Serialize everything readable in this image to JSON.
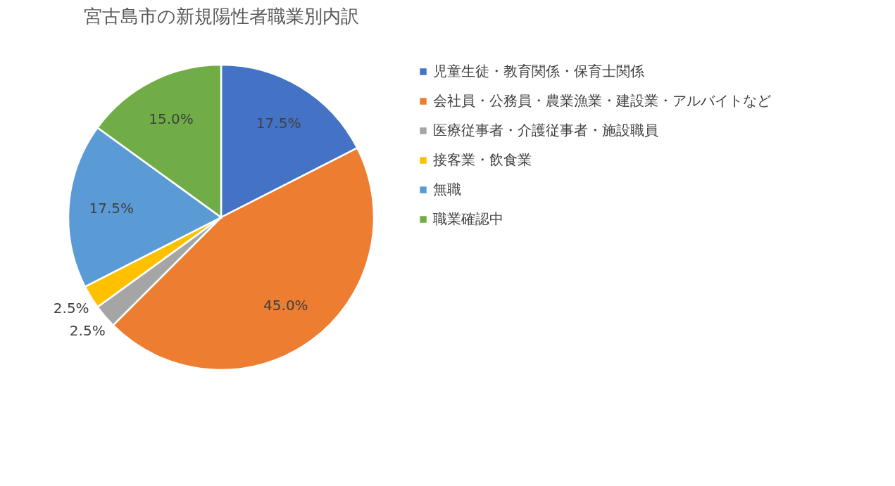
{
  "chart_data": {
    "type": "pie",
    "title": "宮古島市の新規陽性者職業別内訳",
    "categories": [
      "児童生徒・教育関係・保育士関係",
      "会社員・公務員・農業漁業・建設業・アルバイトなど",
      "医療従事者・介護従事者・施設職員",
      "接客業・飲食業",
      "無職",
      "職業確認中"
    ],
    "values": [
      17.5,
      45.0,
      2.5,
      2.5,
      17.5,
      15.0
    ],
    "value_labels": [
      "17.5%",
      "45.0%",
      "2.5%",
      "2.5%",
      "17.5%",
      "15.0%"
    ],
    "colors": [
      "#4472c4",
      "#ed7d31",
      "#a5a5a5",
      "#ffc000",
      "#5b9bd5",
      "#70ad47"
    ],
    "legend": "right"
  }
}
